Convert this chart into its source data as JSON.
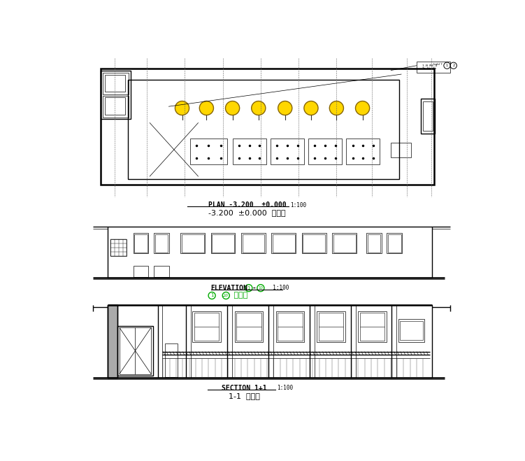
{
  "bg_color": "#ffffff",
  "line_color": "#000000",
  "yellow_color": "#FFD700",
  "green_color": "#00AA00",
  "title1_line1": "PLAN -3.200  ±0.000",
  "title1_scale": "1:100",
  "title1_line2": "-3.200  ±0.000  平面图",
  "title2_line1": "ELEVATION",
  "title2_scale": "1:100",
  "title2_line2": "立面图",
  "title3_line1": "SECTION 1+1",
  "title3_scale": "1:100",
  "title3_line2": "1-1  剪面图",
  "circle1": "1",
  "circle10": "10"
}
